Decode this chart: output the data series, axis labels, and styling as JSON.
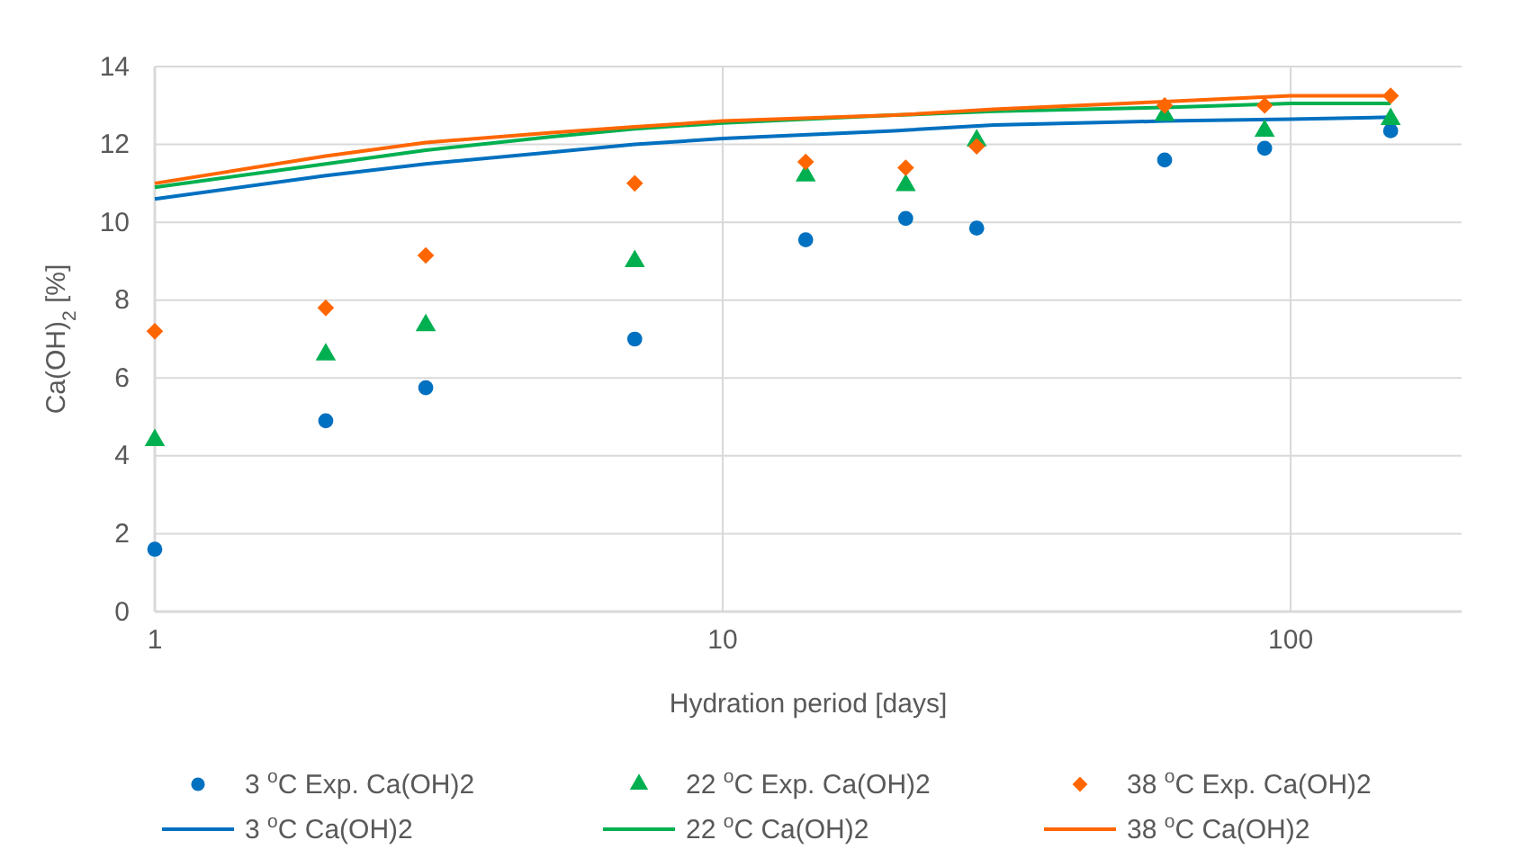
{
  "chart_data": {
    "type": "scatter",
    "xlabel": "Hydration period [days]",
    "ylabel": "Ca(OH)$_{2}$ [%]",
    "log": "x",
    "xlim": [
      1,
      200
    ],
    "xticks": [
      1,
      10,
      100
    ],
    "ylim": [
      0,
      14
    ],
    "yticks": [
      0,
      2,
      4,
      6,
      8,
      10,
      12,
      14
    ],
    "grid": true,
    "legend": "bottom",
    "series": [
      {
        "name": "3 $^{o}$C Exp. Ca(OH)2",
        "marker": "circle",
        "color": "#0070c0",
        "x": [
          1,
          2,
          3,
          7,
          14,
          21,
          28,
          60,
          90,
          150
        ],
        "values": [
          1.6,
          4.9,
          5.75,
          7.0,
          9.55,
          10.1,
          9.85,
          11.6,
          11.9,
          12.35
        ]
      },
      {
        "name": "22 $^{o}$C Exp. Ca(OH)2",
        "marker": "triangle",
        "color": "#00b050",
        "x": [
          1,
          2,
          3,
          7,
          14,
          21,
          28,
          60,
          90,
          150
        ],
        "values": [
          4.4,
          6.6,
          7.35,
          9.0,
          11.2,
          10.95,
          12.1,
          12.75,
          12.35,
          12.65
        ]
      },
      {
        "name": "38 $^{o}$C Exp. Ca(OH)2",
        "marker": "diamond",
        "color": "#ff6600",
        "x": [
          1,
          2,
          3,
          7,
          14,
          21,
          28,
          60,
          90,
          150
        ],
        "values": [
          7.2,
          7.8,
          9.15,
          11.0,
          11.55,
          11.4,
          11.95,
          13.0,
          13.0,
          13.25
        ]
      },
      {
        "name": "3 $^{o}$C Ca(OH)2",
        "type": "line",
        "color": "#0070c0",
        "x": [
          1,
          2,
          3,
          5,
          7,
          10,
          20,
          30,
          60,
          100,
          150
        ],
        "values": [
          10.6,
          11.2,
          11.5,
          11.8,
          12.0,
          12.15,
          12.35,
          12.5,
          12.6,
          12.65,
          12.7
        ]
      },
      {
        "name": "22 $^{o}$C Ca(OH)2",
        "type": "line",
        "color": "#00b050",
        "x": [
          1,
          2,
          3,
          5,
          7,
          10,
          20,
          30,
          60,
          100,
          150
        ],
        "values": [
          10.9,
          11.5,
          11.85,
          12.2,
          12.4,
          12.55,
          12.75,
          12.85,
          12.95,
          13.05,
          13.05
        ]
      },
      {
        "name": "38 $^{o}$C Ca(OH)2",
        "type": "line",
        "color": "#ff6600",
        "x": [
          1,
          2,
          3,
          5,
          7,
          10,
          20,
          30,
          60,
          100,
          150
        ],
        "values": [
          11.0,
          11.7,
          12.05,
          12.3,
          12.45,
          12.6,
          12.75,
          12.9,
          13.1,
          13.25,
          13.25
        ]
      }
    ]
  }
}
